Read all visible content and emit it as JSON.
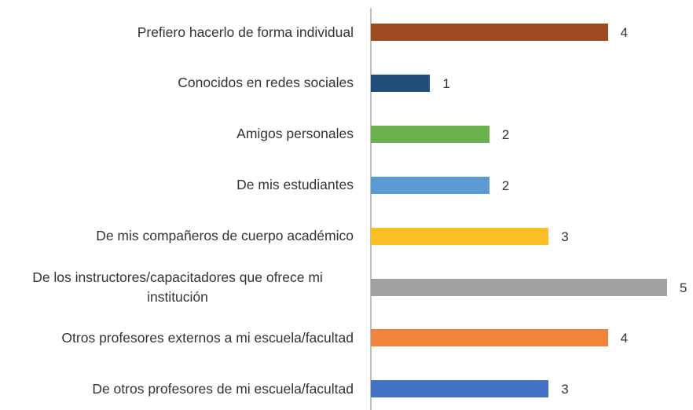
{
  "chart_data": {
    "type": "barh",
    "categories": [
      "Prefiero hacerlo de forma individual",
      "Conocidos en redes sociales",
      "Amigos personales",
      "De mis estudiantes",
      "De mis compañeros de cuerpo académico",
      "De los instructores/capacitadores que ofrece mi institución",
      "Otros profesores externos a mi escuela/facultad",
      "De otros profesores de mi escuela/facultad"
    ],
    "values": [
      4,
      1,
      2,
      2,
      3,
      5,
      4,
      3
    ],
    "colors": [
      "#9e4a21",
      "#1f4e79",
      "#6ab04c",
      "#5b9bd5",
      "#fbbf24",
      "#9ea0a1",
      "#f0843c",
      "#4472c4"
    ]
  }
}
